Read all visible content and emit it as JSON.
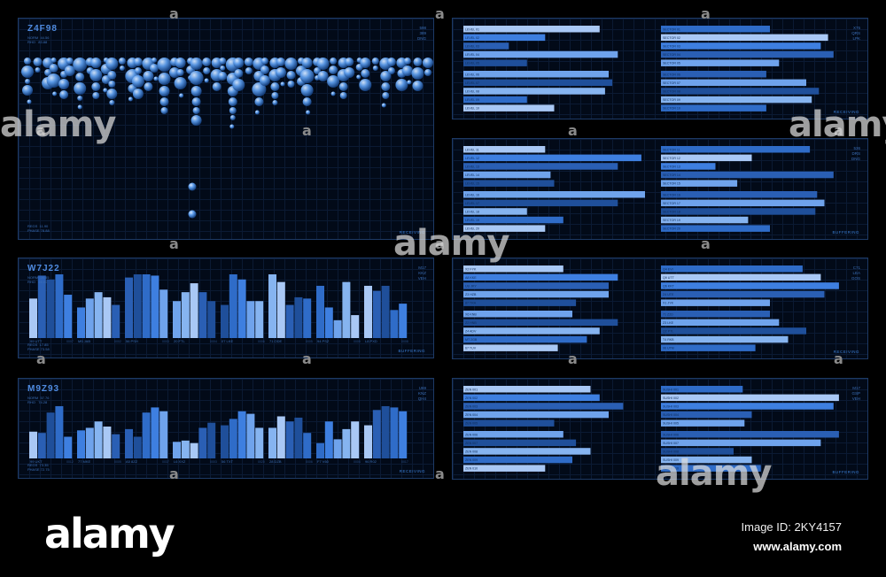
{
  "panels": {
    "bubble": {
      "title": "Z4F98",
      "meta": "NORM  44.56\nRHO   83.88",
      "code": "598\n389\nDNG",
      "foot": "REGS  11.90\nPHASE 78.88",
      "status": "RECEIVING"
    },
    "bar1": {
      "title": "W7J22",
      "meta": "NORM  26.85\nRHO   66.80",
      "code": "M17\nKKZ\nVEH",
      "foot": "REGS  17.85\nPHASE 73.58",
      "status": "BUFFERING"
    },
    "bar2": {
      "title": "M9Z93",
      "meta": "NORM  57.76\nRHO   74.28",
      "code": "U69\nKNZ\nQH4",
      "foot": "REGS  73.35\nPHASE 72.75",
      "status": "RECEIVING"
    },
    "hbar1": {
      "code": "X75\nQRS\nLPK",
      "status": "RECEIVING"
    },
    "hbar2": {
      "code": "536\nDRS\nDNG",
      "status": "BUFFERING"
    },
    "hbar3": {
      "code": "C71\nLEA\nGOS",
      "status": "RECEIVING"
    },
    "hbar4": {
      "code": "M17\nGSP\nVEH",
      "status": "BUFFERING"
    }
  },
  "chart_data": [
    {
      "type": "scatter",
      "title": "Z4F98",
      "columns": 48,
      "bubble_columns": [
        [
          4,
          7,
          3,
          6
        ],
        [
          5,
          3
        ],
        [
          6,
          4,
          7
        ],
        [
          3,
          5,
          8
        ],
        [
          7,
          4,
          6,
          5
        ],
        [
          4,
          6
        ],
        [
          8,
          5,
          7,
          3
        ],
        [
          5,
          4
        ],
        [
          6,
          7,
          5,
          4
        ],
        [
          3,
          6,
          5
        ],
        [
          7,
          5,
          4,
          6,
          3
        ],
        [
          4,
          3
        ],
        [
          6,
          8,
          5
        ],
        [
          5,
          4,
          7,
          6
        ],
        [
          7,
          6,
          5
        ],
        [
          3,
          5
        ],
        [
          8,
          7,
          6,
          5,
          4
        ],
        [
          5,
          6
        ],
        [
          6,
          4,
          7
        ],
        [
          4,
          5,
          3
        ],
        [
          7,
          8,
          6,
          5,
          4,
          6
        ],
        [
          5,
          4
        ],
        [
          6,
          7,
          5
        ],
        [
          4,
          3,
          5
        ],
        [
          8,
          7,
          6,
          5,
          4,
          3
        ],
        [
          6,
          5,
          7
        ],
        [
          5,
          4
        ],
        [
          7,
          6,
          8,
          5
        ],
        [
          4,
          5,
          6
        ],
        [
          6,
          7,
          5,
          4,
          3
        ],
        [
          5,
          6
        ],
        [
          7,
          5,
          4
        ],
        [
          4,
          6,
          5
        ],
        [
          6,
          8,
          7,
          5
        ],
        [
          5,
          4,
          3
        ],
        [
          7,
          6
        ],
        [
          4,
          5,
          7
        ],
        [
          6,
          7,
          5,
          4
        ],
        [
          5,
          6
        ],
        [
          3,
          4
        ],
        [
          6,
          5,
          7
        ],
        [
          4,
          3
        ],
        [
          7,
          6,
          5,
          4
        ],
        [
          5,
          4
        ],
        [
          6,
          5,
          7
        ],
        [
          4,
          6
        ],
        [
          5,
          7,
          6
        ],
        [
          6,
          4
        ]
      ]
    },
    {
      "type": "bar",
      "title": "W7J22",
      "categories": [
        "99 UTT",
        "M5 JAB",
        "56 PSH",
        "20 FTL",
        "07 LKE",
        "71 ODE",
        "94 PSZ",
        "L8 PXD"
      ],
      "sub_labels": [
        "0007",
        "0002",
        "0003",
        "0004",
        "0006",
        "0005",
        "0009",
        "0008"
      ],
      "series_values": [
        [
          0.62,
          0.98,
          0.92,
          1.0,
          0.68
        ],
        [
          0.48,
          0.62,
          0.72,
          0.64,
          0.52
        ],
        [
          0.95,
          1.0,
          1.0,
          0.98,
          0.76
        ],
        [
          0.58,
          0.72,
          0.86,
          0.72,
          0.58
        ],
        [
          0.52,
          1.0,
          0.92,
          0.58,
          0.58
        ],
        [
          1.0,
          0.88,
          0.52,
          0.64,
          0.62
        ],
        [
          0.82,
          0.48,
          0.28,
          0.88,
          0.36
        ],
        [
          0.82,
          0.74,
          0.82,
          0.44,
          0.54
        ]
      ]
    },
    {
      "type": "bar",
      "title": "M9Z93",
      "categories": [
        "99 UKT",
        "77 MKE",
        "A5 8ZZ",
        "L6 XXZ",
        "56 TXT",
        "28 DZB",
        "F7 V60",
        "96 R02"
      ],
      "sub_labels": [
        "0012",
        "0005",
        "0037",
        "0003",
        "0020",
        "0006",
        "0004",
        "0017"
      ],
      "series_values": [
        [
          0.42,
          0.4,
          0.72,
          0.82,
          0.34
        ],
        [
          0.44,
          0.48,
          0.58,
          0.5,
          0.38
        ],
        [
          0.46,
          0.34,
          0.72,
          0.8,
          0.74
        ],
        [
          0.26,
          0.28,
          0.24,
          0.48,
          0.56
        ],
        [
          0.52,
          0.62,
          0.74,
          0.7,
          0.48
        ],
        [
          0.48,
          0.66,
          0.58,
          0.64,
          0.4
        ],
        [
          0.24,
          0.58,
          0.3,
          0.46,
          0.58
        ],
        [
          0.52,
          0.76,
          0.82,
          0.8,
          0.74
        ]
      ]
    },
    {
      "type": "bar",
      "orientation": "horizontal",
      "groups": [
        {
          "labels": [
            "LEVEL 01",
            "LEVEL 02",
            "LEVEL 03",
            "LEVEL 04",
            "LEVEL 05"
          ],
          "values": [
            0.75,
            0.45,
            0.25,
            0.85,
            0.35
          ]
        },
        {
          "labels": [
            "LEVEL 06",
            "LEVEL 07",
            "LEVEL 08",
            "LEVEL 09",
            "LEVEL 10"
          ],
          "values": [
            0.8,
            0.82,
            0.78,
            0.35,
            0.5
          ]
        },
        {
          "labels": [
            "SECTOR 01",
            "SECTOR 02",
            "SECTOR 03",
            "SECTOR 04",
            "SECTOR 05"
          ],
          "values": [
            0.6,
            0.92,
            0.88,
            0.95,
            0.65
          ]
        },
        {
          "labels": [
            "SECTOR 06",
            "SECTOR 07",
            "SECTOR 08",
            "SECTOR 09",
            "SECTOR 10"
          ],
          "values": [
            0.58,
            0.8,
            0.87,
            0.83,
            0.58
          ]
        }
      ]
    },
    {
      "type": "bar",
      "orientation": "horizontal",
      "groups": [
        {
          "labels": [
            "LEVEL 11",
            "LEVEL 12",
            "LEVEL 13",
            "LEVEL 14",
            "LEVEL 15"
          ],
          "values": [
            0.45,
            0.98,
            0.85,
            0.48,
            0.5
          ]
        },
        {
          "labels": [
            "LEVEL 16",
            "LEVEL 17",
            "LEVEL 18",
            "LEVEL 19",
            "LEVEL 20"
          ],
          "values": [
            1.0,
            0.85,
            0.35,
            0.55,
            0.45
          ]
        },
        {
          "labels": [
            "SECTOR 11",
            "SECTOR 12",
            "SECTOR 13",
            "SECTOR 14",
            "SECTOR 15"
          ],
          "values": [
            0.82,
            0.5,
            0.3,
            0.95,
            0.42
          ]
        },
        {
          "labels": [
            "SECTOR 16",
            "SECTOR 17",
            "SECTOR 18",
            "SECTOR 19",
            "SECTOR 20"
          ],
          "values": [
            0.86,
            0.9,
            0.85,
            0.48,
            0.6
          ]
        }
      ]
    },
    {
      "type": "bar",
      "orientation": "horizontal",
      "groups": [
        {
          "labels": [
            "X2 FYK",
            "A8 KKE",
            "UU JKY",
            "Z3 HZB",
            "87 TRA"
          ],
          "values": [
            0.55,
            0.85,
            0.8,
            0.8,
            0.62
          ]
        },
        {
          "labels": [
            "X6 KNB",
            "Z2 HNB",
            "Z4 ADV",
            "MT 2GB",
            "67 TUV"
          ],
          "values": [
            0.6,
            0.85,
            0.75,
            0.68,
            0.52
          ]
        },
        {
          "labels": [
            "Q4 EVI",
            "Q9 UTT",
            "Q6 KKT",
            "Z4 UTE",
            "X1 JYK"
          ],
          "values": [
            0.78,
            0.88,
            0.98,
            0.9,
            0.6
          ]
        },
        {
          "labels": [
            "71 Z2D",
            "Z3 LKE",
            "Q2 PTL",
            "T4 RKB",
            "96 UTM"
          ],
          "values": [
            0.6,
            0.65,
            0.8,
            0.7,
            0.52
          ]
        }
      ]
    },
    {
      "type": "bar",
      "orientation": "horizontal",
      "groups": [
        {
          "labels": [
            "ZEN 001",
            "ZEN 002",
            "ZEN 003",
            "ZEN 004",
            "ZEN 005"
          ],
          "values": [
            0.7,
            0.75,
            0.88,
            0.8,
            0.5
          ]
        },
        {
          "labels": [
            "ZEN 006",
            "ZEN 007",
            "ZEN 008",
            "ZEN 009",
            "ZEN 010"
          ],
          "values": [
            0.55,
            0.62,
            0.7,
            0.6,
            0.45
          ]
        },
        {
          "labels": [
            "SUSHI 001",
            "SUSHI 002",
            "SUSHI 003",
            "SUSHI 004",
            "SUSHI 005"
          ],
          "values": [
            0.45,
            0.98,
            0.95,
            0.5,
            0.46
          ]
        },
        {
          "labels": [
            "SUSHI 006",
            "SUSHI 007",
            "SUSHI 008",
            "SUSHI 009",
            "SUSHI 010"
          ],
          "values": [
            0.98,
            0.88,
            0.4,
            0.5,
            0.55
          ]
        }
      ]
    }
  ],
  "marks": [
    "a",
    "a",
    "a",
    "a",
    "a",
    "a",
    "a",
    "a",
    "a",
    "a",
    "a",
    "a",
    "a",
    "a",
    "a",
    "a",
    "a",
    "a",
    "a",
    "a"
  ],
  "watermarks": [
    "alamy",
    "alamy",
    "alamy",
    "alamy"
  ],
  "footer": {
    "logo": "alamy",
    "image_id": "Image ID: 2KY4157",
    "site": "www.alamy.com"
  }
}
